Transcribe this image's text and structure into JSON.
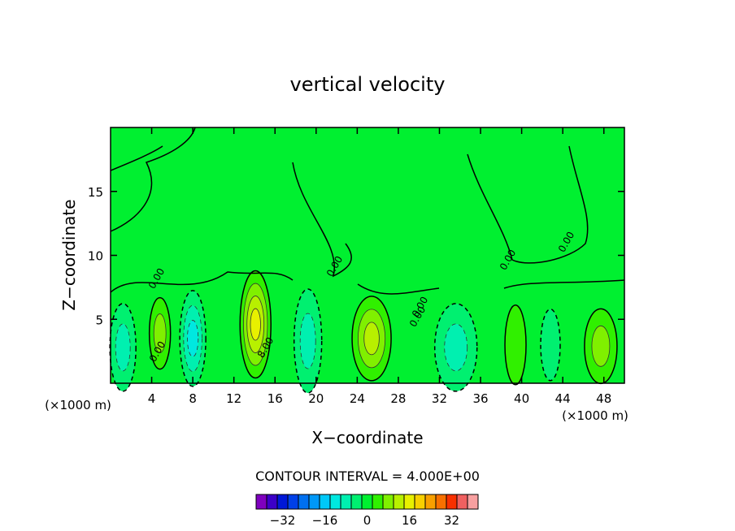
{
  "chart_data": {
    "type": "heatmap",
    "title": "vertical velocity",
    "xlabel": "X−coordinate",
    "ylabel": "Z−coordinate",
    "x_unit_left": "(×1000 m)",
    "x_unit_right": "(×1000 m)",
    "xlim": [
      0,
      50
    ],
    "ylim": [
      0,
      20
    ],
    "x_ticks": [
      4,
      8,
      12,
      16,
      20,
      24,
      28,
      32,
      36,
      40,
      44,
      48
    ],
    "y_ticks": [
      5,
      10,
      15
    ],
    "contour_interval_text": "CONTOUR INTERVAL = 4.000E+00",
    "contour_interval": 4,
    "colorbar": {
      "levels": [
        -40,
        -36,
        -32,
        -28,
        -24,
        -20,
        -16,
        -12,
        -8,
        -4,
        0,
        4,
        8,
        12,
        16,
        20,
        24,
        28,
        32,
        36,
        40
      ],
      "colors": [
        "#7f00bf",
        "#3c00c8",
        "#0018d8",
        "#0040e8",
        "#0070f0",
        "#0098f8",
        "#00c8f8",
        "#00e8e0",
        "#00f0b0",
        "#00f070",
        "#00f030",
        "#30f000",
        "#80f000",
        "#b8f000",
        "#e8f000",
        "#f8d000",
        "#f8a000",
        "#f87000",
        "#f83000",
        "#f06060",
        "#f8a0a0"
      ],
      "labels": [
        {
          "v": -32,
          "t": "−32"
        },
        {
          "v": -16,
          "t": "−16"
        },
        {
          "v": 0,
          "t": "0"
        },
        {
          "v": 16,
          "t": "16"
        },
        {
          "v": 32,
          "t": "32"
        }
      ]
    },
    "cells": [
      {
        "x": 1.2,
        "z": 2.8,
        "value": -7
      },
      {
        "x": 4.8,
        "z": 3.9,
        "value": 8
      },
      {
        "x": 8.0,
        "z": 3.5,
        "value": -13
      },
      {
        "x": 14.1,
        "z": 4.6,
        "value": 16
      },
      {
        "x": 19.2,
        "z": 3.3,
        "value": -9
      },
      {
        "x": 25.4,
        "z": 3.5,
        "value": 10
      },
      {
        "x": 33.6,
        "z": 2.8,
        "value": -8
      },
      {
        "x": 39.4,
        "z": 3.0,
        "value": 5
      },
      {
        "x": 42.8,
        "z": 3.0,
        "value": -4
      },
      {
        "x": 47.7,
        "z": 2.9,
        "value": 9
      }
    ],
    "contour_labels": [
      "0.00",
      "8.00",
      "0.00",
      "0.00",
      "0.00",
      "0.00",
      "0.00",
      "0.00"
    ]
  }
}
